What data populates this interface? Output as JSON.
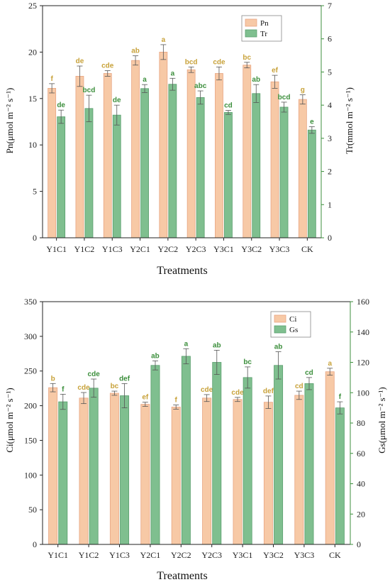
{
  "colors": {
    "left_bar_fill": "#f7c9a6",
    "left_bar_edge": "#e8a582",
    "right_bar_fill": "#7fbf8f",
    "right_bar_edge": "#5a9e6d",
    "left_letter": "#c8a23a",
    "right_letter": "#3c8f3c",
    "right_axis": "#3c8f3c"
  },
  "chart_data": [
    {
      "type": "bar",
      "categories": [
        "Y1C1",
        "Y1C2",
        "Y1C3",
        "Y2C1",
        "Y2C2",
        "Y2C3",
        "Y3C1",
        "Y3C2",
        "Y3C3",
        "CK"
      ],
      "xlabel": "Treatments",
      "ylabel_left": "Pn(μmol m⁻² s⁻¹)",
      "ylabel_right": "Tr(mmol m⁻² s⁻¹)",
      "ylim_left": [
        0,
        25
      ],
      "ylim_right": [
        0,
        7
      ],
      "yticks_left": [
        0,
        5,
        10,
        15,
        20,
        25
      ],
      "yticks_right": [
        0,
        1,
        2,
        3,
        4,
        5,
        6,
        7
      ],
      "legend_position": "top-right",
      "series": [
        {
          "name": "Pn",
          "axis": "left",
          "values": [
            16.1,
            17.4,
            17.7,
            19.1,
            20.0,
            18.1,
            17.7,
            18.6,
            16.8,
            14.9
          ],
          "errors": [
            0.5,
            1.1,
            0.3,
            0.5,
            0.8,
            0.3,
            0.7,
            0.3,
            0.7,
            0.5
          ],
          "letters": [
            "f",
            "de",
            "cde",
            "ab",
            "a",
            "bcd",
            "cde",
            "bc",
            "ef",
            "g"
          ]
        },
        {
          "name": "Tr",
          "axis": "right",
          "values": [
            3.65,
            3.9,
            3.7,
            4.5,
            4.63,
            4.23,
            3.78,
            4.35,
            3.94,
            3.25
          ],
          "errors": [
            0.2,
            0.4,
            0.3,
            0.12,
            0.18,
            0.2,
            0.06,
            0.27,
            0.15,
            0.1
          ],
          "letters": [
            "de",
            "bcd",
            "de",
            "a",
            "a",
            "abc",
            "cd",
            "ab",
            "bcd",
            "e"
          ]
        }
      ]
    },
    {
      "type": "bar",
      "categories": [
        "Y1C1",
        "Y1C2",
        "Y1C3",
        "Y2C1",
        "Y2C2",
        "Y2C3",
        "Y3C1",
        "Y3C2",
        "Y3C3",
        "CK"
      ],
      "xlabel": "Treatments",
      "ylabel_left": "Ci(μmol m⁻² s⁻¹)",
      "ylabel_right": "Gs(μmol m⁻² s⁻¹)",
      "ylim_left": [
        0,
        350
      ],
      "ylim_right": [
        0,
        160
      ],
      "yticks_left": [
        0,
        50,
        100,
        150,
        200,
        250,
        300,
        350
      ],
      "yticks_right": [
        0,
        20,
        40,
        60,
        80,
        100,
        120,
        140,
        160
      ],
      "legend_position": "top-right",
      "series": [
        {
          "name": "Ci",
          "axis": "left",
          "values": [
            226,
            211,
            218,
            202,
            198,
            211,
            209,
            205,
            215,
            249
          ],
          "errors": [
            6,
            8,
            3,
            3,
            3,
            5,
            3,
            9,
            6,
            5
          ],
          "letters": [
            "b",
            "cde",
            "bc",
            "ef",
            "f",
            "cde",
            "cde",
            "def",
            "cd",
            "a"
          ]
        },
        {
          "name": "Gs",
          "axis": "right",
          "values": [
            94,
            103,
            98,
            118,
            124,
            120,
            110,
            118,
            106,
            90
          ],
          "errors": [
            5,
            6,
            8,
            3,
            5,
            8,
            7,
            9,
            4,
            4
          ],
          "letters": [
            "f",
            "cde",
            "def",
            "ab",
            "a",
            "ab",
            "bc",
            "ab",
            "cd",
            "f"
          ]
        }
      ]
    }
  ]
}
